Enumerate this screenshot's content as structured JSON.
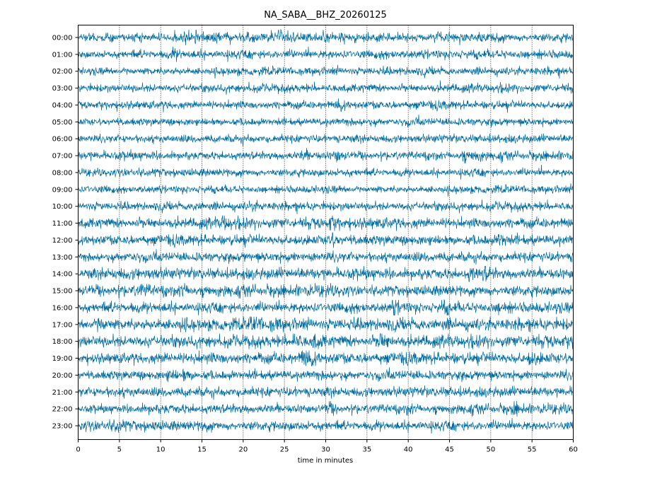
{
  "chart_data": {
    "type": "line",
    "title": "NA_SABA__BHZ_20260125",
    "xlabel": "time in minutes",
    "ylabel": "",
    "xlim": [
      0,
      60
    ],
    "x_ticks": [
      "0",
      "5",
      "10",
      "15",
      "20",
      "25",
      "30",
      "35",
      "40",
      "45",
      "50",
      "55",
      "60"
    ],
    "x_tick_values": [
      0,
      5,
      10,
      15,
      20,
      25,
      30,
      35,
      40,
      45,
      50,
      55,
      60
    ],
    "grid": "vertical dotted at each x tick",
    "rows": [
      "00:00",
      "01:00",
      "02:00",
      "03:00",
      "04:00",
      "05:00",
      "06:00",
      "07:00",
      "08:00",
      "09:00",
      "10:00",
      "11:00",
      "12:00",
      "13:00",
      "14:00",
      "15:00",
      "16:00",
      "17:00",
      "18:00",
      "19:00",
      "20:00",
      "21:00",
      "22:00",
      "23:00"
    ],
    "row_noise_level": [
      1.0,
      1.0,
      0.9,
      0.9,
      0.9,
      0.85,
      0.9,
      0.95,
      0.9,
      0.85,
      0.95,
      1.15,
      1.15,
      1.1,
      1.25,
      1.25,
      1.2,
      1.35,
      1.3,
      1.25,
      1.05,
      1.1,
      1.05,
      1.1
    ],
    "events": [
      {
        "row": 0,
        "minute": 12.8,
        "amp": 1.8
      },
      {
        "row": 0,
        "minute": 36.5,
        "amp": 1.5
      },
      {
        "row": 1,
        "minute": 11.5,
        "amp": 1.8
      },
      {
        "row": 4,
        "minute": 31.6,
        "amp": 2.5
      },
      {
        "row": 7,
        "minute": 27.2,
        "amp": 2.0
      },
      {
        "row": 7,
        "minute": 31.2,
        "amp": 2.4
      },
      {
        "row": 7,
        "minute": 46.5,
        "amp": 2.0
      },
      {
        "row": 7,
        "minute": 48.0,
        "amp": 2.2
      },
      {
        "row": 10,
        "minute": 14.0,
        "amp": 1.6
      },
      {
        "row": 10,
        "minute": 20.8,
        "amp": 1.7
      },
      {
        "row": 11,
        "minute": 17.5,
        "amp": 2.2
      },
      {
        "row": 11,
        "minute": 30.5,
        "amp": 2.0
      },
      {
        "row": 12,
        "minute": 30.5,
        "amp": 2.3
      },
      {
        "row": 12,
        "minute": 51.0,
        "amp": 2.3
      },
      {
        "row": 14,
        "minute": 47.5,
        "amp": 2.0
      },
      {
        "row": 14,
        "minute": 49.2,
        "amp": 2.0
      },
      {
        "row": 15,
        "minute": 7.5,
        "amp": 1.9
      },
      {
        "row": 15,
        "minute": 12.5,
        "amp": 2.0
      },
      {
        "row": 16,
        "minute": 38.2,
        "amp": 2.4
      },
      {
        "row": 16,
        "minute": 44.2,
        "amp": 1.8
      },
      {
        "row": 16,
        "minute": 51.0,
        "amp": 1.7
      },
      {
        "row": 17,
        "minute": 2.5,
        "amp": 2.0
      },
      {
        "row": 17,
        "minute": 12.5,
        "amp": 1.7
      },
      {
        "row": 17,
        "minute": 21.0,
        "amp": 2.6
      },
      {
        "row": 17,
        "minute": 23.5,
        "amp": 1.8
      },
      {
        "row": 18,
        "minute": 26.0,
        "amp": 2.2
      },
      {
        "row": 18,
        "minute": 28.5,
        "amp": 2.0
      },
      {
        "row": 18,
        "minute": 36.5,
        "amp": 2.6
      },
      {
        "row": 19,
        "minute": 27.2,
        "amp": 2.6
      },
      {
        "row": 19,
        "minute": 28.2,
        "amp": 2.3
      },
      {
        "row": 19,
        "minute": 54.8,
        "amp": 2.0
      },
      {
        "row": 20,
        "minute": 11.0,
        "amp": 1.8
      },
      {
        "row": 20,
        "minute": 12.8,
        "amp": 1.8
      },
      {
        "row": 22,
        "minute": 30.2,
        "amp": 2.0
      },
      {
        "row": 22,
        "minute": 40.0,
        "amp": 1.7
      },
      {
        "row": 22,
        "minute": 52.8,
        "amp": 1.8
      },
      {
        "row": 23,
        "minute": 4.5,
        "amp": 1.8
      },
      {
        "row": 23,
        "minute": 15.0,
        "amp": 1.5
      }
    ],
    "trace_color": "#006ba0"
  }
}
